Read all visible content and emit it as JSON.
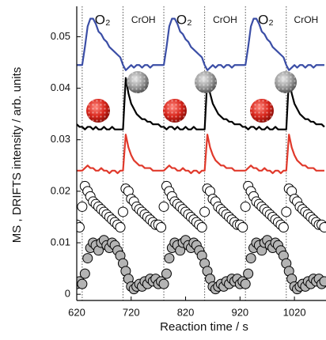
{
  "chart_data": {
    "type": "line",
    "xlabel": "Reaction time / s",
    "ylabel": "MS , DRIFTS intensity / arb. units",
    "xlim": [
      620,
      1078
    ],
    "ylim": [
      -0.0012,
      0.0559
    ],
    "xticks": [
      620,
      720,
      820,
      920,
      1020
    ],
    "yticks": [
      0,
      0.01,
      0.02,
      0.03,
      0.04,
      0.05
    ],
    "switch_times": [
      630,
      705,
      780,
      855,
      930,
      1005
    ],
    "phase_labels": [
      "O₂",
      "CrOH",
      "O₂",
      "CrOH",
      "O₂",
      "CrOH"
    ],
    "x": [
      620,
      625,
      630,
      635,
      640,
      645,
      650,
      655,
      660,
      665,
      670,
      675,
      680,
      685,
      690,
      695,
      700,
      705,
      710,
      715,
      720,
      725,
      730,
      735,
      740,
      745,
      750,
      755,
      760,
      765,
      770,
      775,
      780,
      785,
      790,
      795,
      800,
      805,
      810,
      815,
      820,
      825,
      830,
      835,
      840,
      845,
      850,
      855,
      860,
      865,
      870,
      875,
      880,
      885,
      890,
      895,
      900,
      905,
      910,
      915,
      920,
      925,
      930,
      935,
      940,
      945,
      950,
      955,
      960,
      965,
      970,
      975,
      980,
      985,
      990,
      995,
      1000,
      1005,
      1010,
      1015,
      1020,
      1025,
      1030,
      1035,
      1040,
      1045,
      1050,
      1055,
      1060,
      1065,
      1070,
      1075
    ],
    "series": [
      {
        "color": "#3b4ea6",
        "marker": false,
        "values": [
          0.0445,
          0.0445,
          0.0445,
          0.048,
          0.052,
          0.0535,
          0.0535,
          0.0525,
          0.051,
          0.0505,
          0.0495,
          0.049,
          0.048,
          0.0475,
          0.047,
          0.0465,
          0.046,
          0.0445,
          0.0435,
          0.044,
          0.0445,
          0.044,
          0.0445,
          0.0445,
          0.044,
          0.0445,
          0.0445,
          0.044,
          0.0445,
          0.0445,
          0.0445,
          0.0445,
          0.0445,
          0.048,
          0.052,
          0.0535,
          0.0535,
          0.0525,
          0.051,
          0.0505,
          0.0495,
          0.049,
          0.048,
          0.0475,
          0.047,
          0.0465,
          0.046,
          0.0445,
          0.0435,
          0.044,
          0.0445,
          0.044,
          0.0445,
          0.0445,
          0.044,
          0.0445,
          0.0445,
          0.044,
          0.0445,
          0.0445,
          0.0445,
          0.0445,
          0.0445,
          0.048,
          0.052,
          0.0535,
          0.0535,
          0.0525,
          0.051,
          0.0505,
          0.0495,
          0.049,
          0.048,
          0.0475,
          0.047,
          0.0465,
          0.046,
          0.0445,
          0.0435,
          0.044,
          0.0445,
          0.044,
          0.0445,
          0.0445,
          0.044,
          0.0445,
          0.0445,
          0.044,
          0.0445,
          0.0445,
          0.0445,
          0.0445
        ]
      },
      {
        "color": "#000000",
        "marker": false,
        "values": [
          0.033,
          0.0325,
          0.0325,
          0.032,
          0.0325,
          0.0325,
          0.032,
          0.0325,
          0.032,
          0.032,
          0.0325,
          0.032,
          0.032,
          0.0325,
          0.032,
          0.032,
          0.032,
          0.032,
          0.042,
          0.039,
          0.037,
          0.036,
          0.035,
          0.0345,
          0.034,
          0.034,
          0.0335,
          0.0335,
          0.033,
          0.033,
          0.033,
          0.0325,
          0.0325,
          0.032,
          0.0325,
          0.0325,
          0.032,
          0.0325,
          0.032,
          0.032,
          0.0325,
          0.032,
          0.032,
          0.0325,
          0.032,
          0.032,
          0.032,
          0.032,
          0.042,
          0.039,
          0.037,
          0.036,
          0.035,
          0.0345,
          0.034,
          0.034,
          0.0335,
          0.0335,
          0.033,
          0.033,
          0.033,
          0.0325,
          0.0325,
          0.032,
          0.0325,
          0.0325,
          0.032,
          0.0325,
          0.032,
          0.032,
          0.0325,
          0.032,
          0.032,
          0.0325,
          0.032,
          0.032,
          0.032,
          0.032,
          0.042,
          0.039,
          0.037,
          0.036,
          0.035,
          0.0345,
          0.034,
          0.034,
          0.0335,
          0.0335,
          0.033,
          0.033,
          0.033,
          0.0325
        ]
      },
      {
        "color": "#e0392b",
        "marker": false,
        "values": [
          0.024,
          0.024,
          0.024,
          0.0245,
          0.025,
          0.0245,
          0.0245,
          0.024,
          0.024,
          0.0245,
          0.024,
          0.024,
          0.0235,
          0.024,
          0.024,
          0.0235,
          0.024,
          0.024,
          0.031,
          0.0285,
          0.027,
          0.026,
          0.0255,
          0.025,
          0.025,
          0.0245,
          0.0245,
          0.0245,
          0.024,
          0.024,
          0.024,
          0.024,
          0.024,
          0.0245,
          0.025,
          0.0245,
          0.0245,
          0.024,
          0.024,
          0.0245,
          0.024,
          0.024,
          0.0235,
          0.024,
          0.024,
          0.0235,
          0.024,
          0.024,
          0.031,
          0.0285,
          0.027,
          0.026,
          0.0255,
          0.025,
          0.025,
          0.0245,
          0.0245,
          0.0245,
          0.024,
          0.024,
          0.024,
          0.024,
          0.024,
          0.0245,
          0.025,
          0.0245,
          0.0245,
          0.024,
          0.024,
          0.0245,
          0.024,
          0.024,
          0.0235,
          0.024,
          0.024,
          0.0235,
          0.024,
          0.024,
          0.031,
          0.0285,
          0.027,
          0.026,
          0.0255,
          0.025,
          0.025,
          0.0245,
          0.0245,
          0.0245,
          0.024,
          0.024,
          0.024,
          0.024
        ]
      },
      {
        "color": "#ffffff",
        "marker": true,
        "values": [
          0.0135,
          0.013,
          0.017,
          0.021,
          0.02,
          0.019,
          0.018,
          0.0175,
          0.017,
          0.0165,
          0.016,
          0.0155,
          0.015,
          0.0145,
          0.014,
          0.0135,
          0.013,
          0.016,
          0.0205,
          0.02,
          0.0185,
          0.018,
          0.017,
          0.0165,
          0.016,
          0.0155,
          0.015,
          0.0145,
          0.014,
          0.0135,
          0.0135,
          0.013,
          0.017,
          0.021,
          0.02,
          0.019,
          0.018,
          0.0175,
          0.017,
          0.0165,
          0.016,
          0.0155,
          0.015,
          0.0145,
          0.014,
          0.0135,
          0.013,
          0.016,
          0.0205,
          0.02,
          0.0185,
          0.018,
          0.017,
          0.0165,
          0.016,
          0.0155,
          0.015,
          0.0145,
          0.014,
          0.0135,
          0.0135,
          0.013,
          0.017,
          0.021,
          0.02,
          0.019,
          0.018,
          0.0175,
          0.017,
          0.0165,
          0.016,
          0.0155,
          0.015,
          0.0145,
          0.014,
          0.0135,
          0.013,
          0.016,
          0.0205,
          0.02,
          0.0185,
          0.018,
          0.017,
          0.0165,
          0.016,
          0.0155,
          0.015,
          0.0145,
          0.014,
          0.0135,
          0.0135,
          0.013
        ]
      },
      {
        "color": "#b4b4b4",
        "marker": true,
        "values": [
          0.002,
          0.0025,
          0.002,
          0.004,
          0.007,
          0.009,
          0.01,
          0.0095,
          0.0085,
          0.01,
          0.0105,
          0.0095,
          0.009,
          0.01,
          0.0095,
          0.0085,
          0.0075,
          0.006,
          0.0045,
          0.003,
          0.0015,
          0.001,
          0.0015,
          0.002,
          0.0015,
          0.0025,
          0.002,
          0.003,
          0.0025,
          0.003,
          0.002,
          0.0025,
          0.002,
          0.004,
          0.007,
          0.009,
          0.01,
          0.0095,
          0.0085,
          0.01,
          0.0105,
          0.0095,
          0.009,
          0.01,
          0.0095,
          0.0085,
          0.0075,
          0.006,
          0.0045,
          0.003,
          0.0015,
          0.001,
          0.0015,
          0.002,
          0.0015,
          0.0025,
          0.002,
          0.003,
          0.0025,
          0.003,
          0.002,
          0.0025,
          0.002,
          0.004,
          0.007,
          0.009,
          0.01,
          0.0095,
          0.0085,
          0.01,
          0.0105,
          0.0095,
          0.009,
          0.01,
          0.0095,
          0.0085,
          0.0075,
          0.006,
          0.0045,
          0.003,
          0.0015,
          0.001,
          0.0015,
          0.002,
          0.0015,
          0.0025,
          0.002,
          0.003,
          0.0025,
          0.003,
          0.002,
          0.0025
        ]
      }
    ]
  }
}
